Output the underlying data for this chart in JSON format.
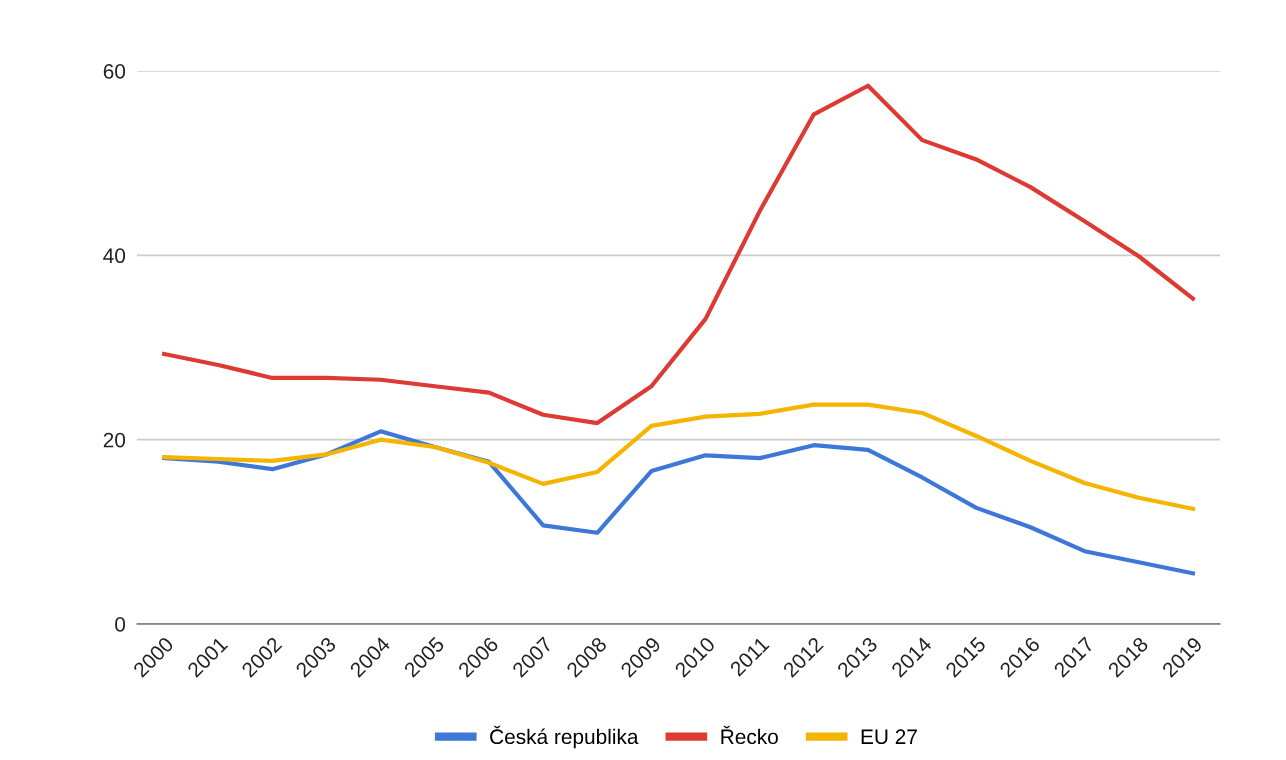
{
  "chart_data": {
    "type": "line",
    "categories": [
      "2000",
      "2001",
      "2002",
      "2003",
      "2004",
      "2005",
      "2006",
      "2007",
      "2008",
      "2009",
      "2010",
      "2011",
      "2012",
      "2013",
      "2014",
      "2015",
      "2016",
      "2017",
      "2018",
      "2019"
    ],
    "series": [
      {
        "name": "Česká republika",
        "color": "#3d78d8",
        "values": [
          18.0,
          17.6,
          16.8,
          18.4,
          20.9,
          19.2,
          17.6,
          10.7,
          9.9,
          16.6,
          18.3,
          18.0,
          19.4,
          18.9,
          15.9,
          12.6,
          10.5,
          7.9,
          6.7,
          5.5
        ]
      },
      {
        "name": "Řecko",
        "color": "#dc3a33",
        "values": [
          29.3,
          28.1,
          26.7,
          26.7,
          26.5,
          25.8,
          25.1,
          22.7,
          21.8,
          25.8,
          33.1,
          44.8,
          55.3,
          58.4,
          52.5,
          50.4,
          47.4,
          43.7,
          39.9,
          35.3
        ]
      },
      {
        "name": "EU 27",
        "color": "#f4b400",
        "values": [
          18.1,
          17.9,
          17.7,
          18.4,
          20.0,
          19.2,
          17.5,
          15.2,
          16.5,
          21.5,
          22.5,
          22.8,
          23.8,
          23.8,
          22.9,
          20.4,
          17.7,
          15.3,
          13.7,
          12.5
        ]
      }
    ],
    "ylim": [
      0,
      60
    ],
    "yticks": [
      0,
      20,
      40,
      60
    ],
    "grid": "y",
    "legend": "bottom",
    "marker": "none",
    "line_style": "solid"
  }
}
